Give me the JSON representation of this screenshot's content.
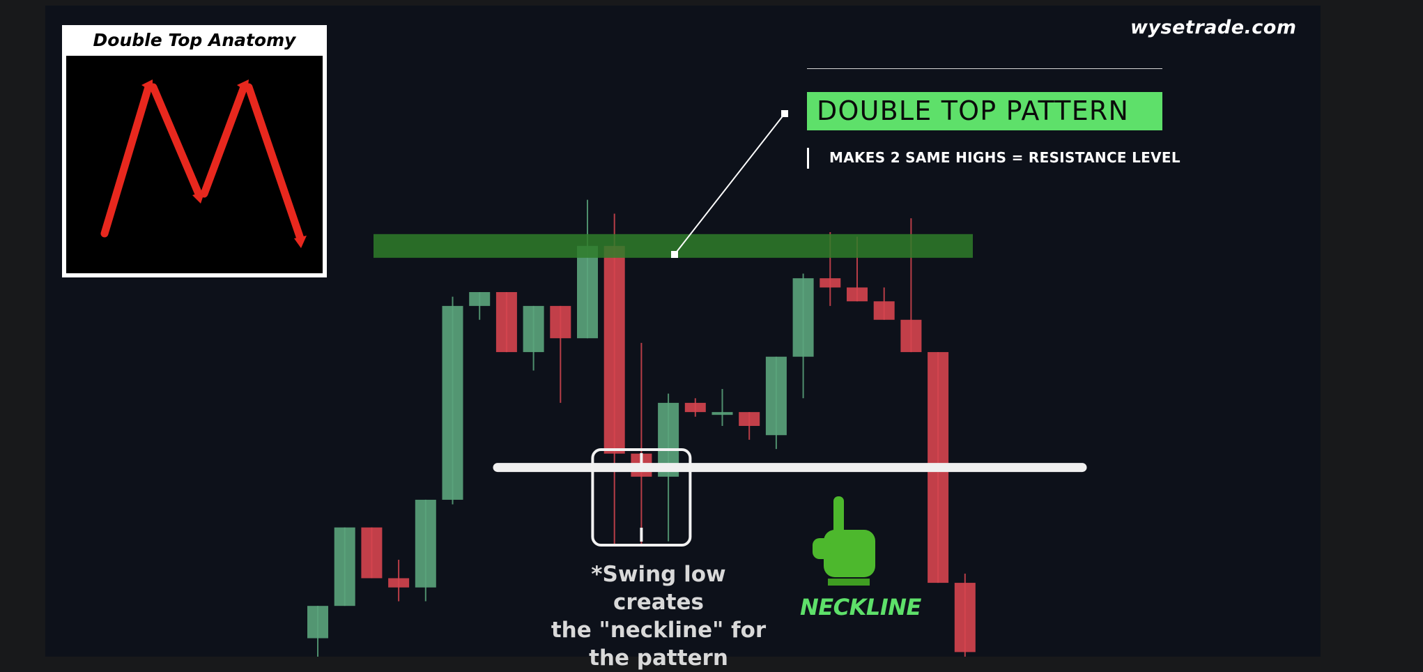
{
  "brand": "wysetrade.com",
  "inset": {
    "title": "Double Top Anatomy"
  },
  "callout": {
    "label": "DOUBLE TOP PATTERN",
    "sub": "MAKES 2 SAME HIGHS = RESISTANCE LEVEL"
  },
  "annotations": {
    "swing_lines": [
      "*Swing low creates",
      "the \"neckline\" for",
      "the pattern"
    ],
    "neckline": "NECKLINE"
  },
  "colors": {
    "up": "#5ba57c",
    "down": "#d6454f",
    "resistance": "#2f7d2a",
    "neckline": "#f0f0f0",
    "label_green": "#5ee06a",
    "arrow_red": "#e8281e"
  },
  "chart_data": {
    "type": "candlestick",
    "title": "",
    "xlabel": "",
    "ylabel": "",
    "ylim": [
      0,
      100
    ],
    "candles": [
      {
        "open": 4,
        "high": 11,
        "low": 0,
        "close": 11
      },
      {
        "open": 11,
        "high": 28,
        "low": 11,
        "close": 28
      },
      {
        "open": 28,
        "high": 28,
        "low": 17,
        "close": 17
      },
      {
        "open": 17,
        "high": 21,
        "low": 12,
        "close": 15
      },
      {
        "open": 15,
        "high": 34,
        "low": 12,
        "close": 34
      },
      {
        "open": 34,
        "high": 78,
        "low": 33,
        "close": 76
      },
      {
        "open": 76,
        "high": 79,
        "low": 73,
        "close": 79
      },
      {
        "open": 79,
        "high": 79,
        "low": 66,
        "close": 66
      },
      {
        "open": 66,
        "high": 76,
        "low": 62,
        "close": 76
      },
      {
        "open": 76,
        "high": 76,
        "low": 55,
        "close": 69
      },
      {
        "open": 69,
        "high": 99,
        "low": 69,
        "close": 89
      },
      {
        "open": 89,
        "high": 96,
        "low": 24,
        "close": 44
      },
      {
        "open": 44,
        "high": 68,
        "low": 24,
        "close": 39
      },
      {
        "open": 39,
        "high": 57,
        "low": 25,
        "close": 55
      },
      {
        "open": 55,
        "high": 56,
        "low": 52,
        "close": 53
      },
      {
        "open": 53,
        "high": 58,
        "low": 50,
        "close": 53
      },
      {
        "open": 53,
        "high": 53,
        "low": 47,
        "close": 50
      },
      {
        "open": 48,
        "high": 65,
        "low": 45,
        "close": 65
      },
      {
        "open": 65,
        "high": 83,
        "low": 56,
        "close": 82
      },
      {
        "open": 82,
        "high": 92,
        "low": 76,
        "close": 80
      },
      {
        "open": 80,
        "high": 91,
        "low": 77,
        "close": 77
      },
      {
        "open": 77,
        "high": 80,
        "low": 73,
        "close": 73
      },
      {
        "open": 73,
        "high": 95,
        "low": 66,
        "close": 66
      },
      {
        "open": 66,
        "high": 66,
        "low": 16,
        "close": 16
      },
      {
        "open": 16,
        "high": 18,
        "low": 0,
        "close": 1
      }
    ],
    "resistance_level": 89,
    "neckline_level": 41,
    "marked_swing_low_index": 12
  }
}
